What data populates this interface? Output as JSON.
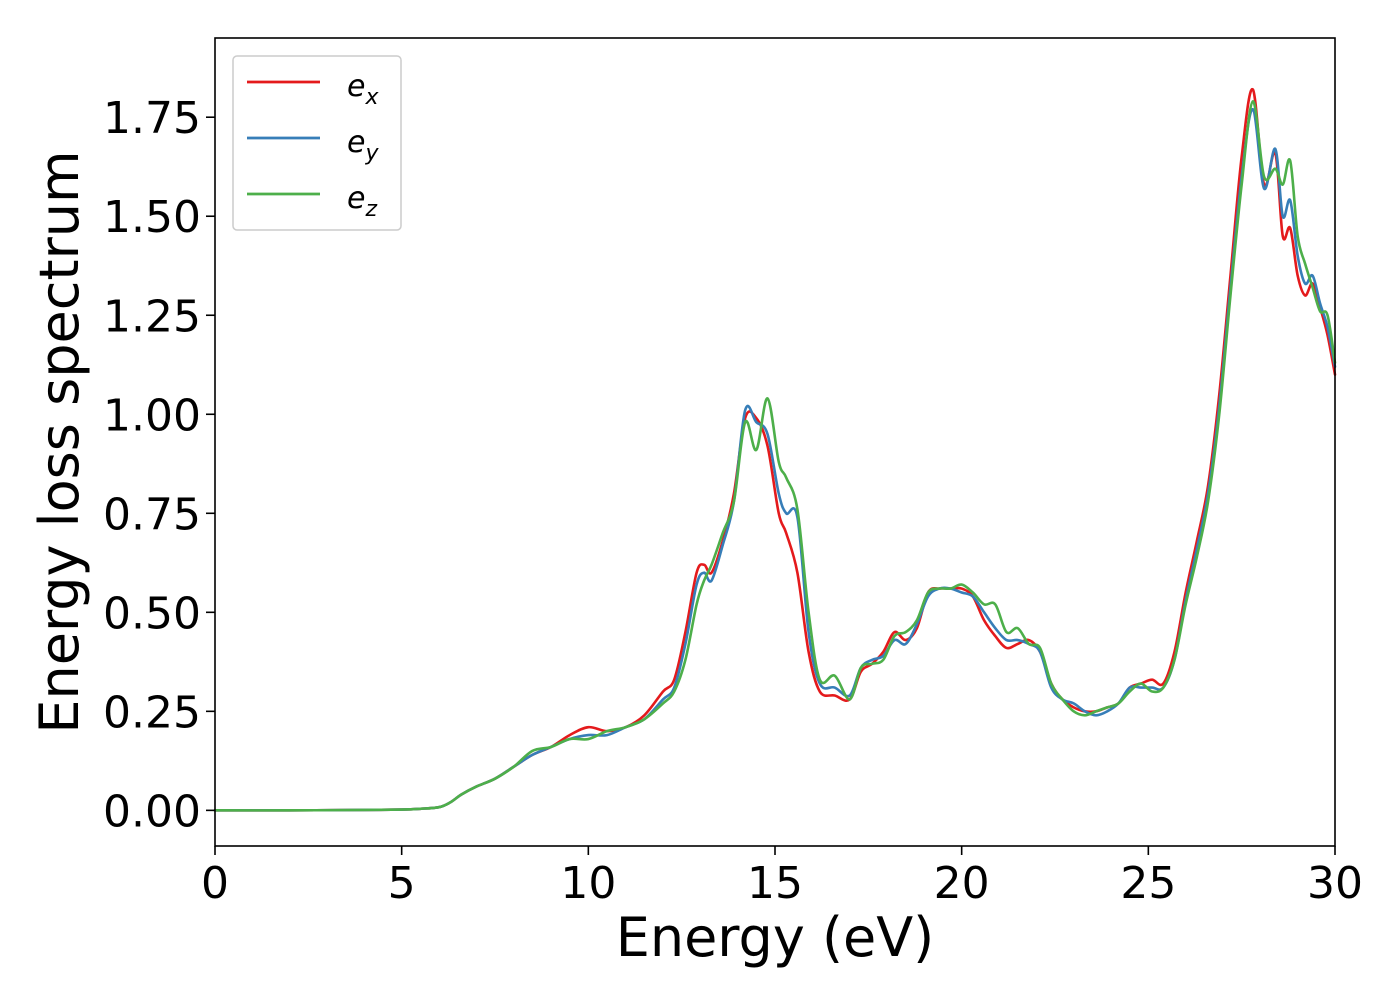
{
  "chart_data": {
    "type": "line",
    "xlabel": "Energy (eV)",
    "ylabel": "Energy loss spectrum",
    "xlim": [
      0,
      30
    ],
    "ylim": [
      -0.09,
      1.95
    ],
    "xticks": [
      "0",
      "5",
      "10",
      "15",
      "20",
      "25",
      "30"
    ],
    "yticks": [
      "0.00",
      "0.25",
      "0.50",
      "0.75",
      "1.00",
      "1.25",
      "1.50",
      "1.75"
    ],
    "grid": false,
    "legend_position": "top-left",
    "series": [
      {
        "name": "e_x",
        "label_base": "e",
        "label_sub": "x",
        "color": "#e41a1c",
        "x": [
          0,
          2,
          4,
          5,
          5.5,
          6,
          6.3,
          6.6,
          7,
          7.5,
          8,
          8.5,
          9,
          9.5,
          10,
          10.5,
          11,
          11.5,
          12,
          12.3,
          12.6,
          12.9,
          13.1,
          13.3,
          13.6,
          13.9,
          14.2,
          14.5,
          14.8,
          15.1,
          15.3,
          15.6,
          15.9,
          16.2,
          16.6,
          17,
          17.3,
          17.6,
          17.9,
          18.2,
          18.5,
          18.8,
          19.1,
          19.4,
          19.7,
          20,
          20.3,
          20.6,
          20.9,
          21.2,
          21.5,
          21.8,
          22.1,
          22.4,
          22.7,
          23,
          23.3,
          23.6,
          23.9,
          24.2,
          24.5,
          24.8,
          25.1,
          25.4,
          25.7,
          26,
          26.3,
          26.6,
          26.9,
          27.2,
          27.5,
          27.8,
          28.1,
          28.4,
          28.6,
          28.8,
          29,
          29.2,
          29.4,
          29.6,
          29.8,
          30
        ],
        "y": [
          0,
          0,
          0.001,
          0.002,
          0.004,
          0.008,
          0.02,
          0.04,
          0.06,
          0.08,
          0.11,
          0.14,
          0.16,
          0.19,
          0.21,
          0.2,
          0.21,
          0.24,
          0.3,
          0.33,
          0.45,
          0.6,
          0.62,
          0.6,
          0.68,
          0.8,
          0.99,
          0.99,
          0.92,
          0.75,
          0.7,
          0.6,
          0.4,
          0.3,
          0.29,
          0.28,
          0.35,
          0.37,
          0.4,
          0.45,
          0.43,
          0.46,
          0.55,
          0.56,
          0.56,
          0.56,
          0.54,
          0.48,
          0.44,
          0.41,
          0.42,
          0.43,
          0.4,
          0.32,
          0.28,
          0.26,
          0.25,
          0.25,
          0.26,
          0.27,
          0.31,
          0.32,
          0.33,
          0.32,
          0.4,
          0.55,
          0.68,
          0.82,
          1.05,
          1.35,
          1.65,
          1.82,
          1.58,
          1.66,
          1.45,
          1.47,
          1.35,
          1.3,
          1.33,
          1.27,
          1.2,
          1.1
        ]
      },
      {
        "name": "e_y",
        "label_base": "e",
        "label_sub": "y",
        "color": "#377eb8",
        "x": [
          0,
          2,
          4,
          5,
          5.5,
          6,
          6.3,
          6.6,
          7,
          7.5,
          8,
          8.5,
          9,
          9.5,
          10,
          10.5,
          11,
          11.5,
          12,
          12.3,
          12.6,
          12.9,
          13.1,
          13.3,
          13.6,
          13.9,
          14.2,
          14.5,
          14.8,
          15.1,
          15.3,
          15.6,
          15.9,
          16.2,
          16.6,
          17,
          17.3,
          17.6,
          17.9,
          18.2,
          18.5,
          18.8,
          19.1,
          19.4,
          19.7,
          20,
          20.3,
          20.6,
          20.9,
          21.2,
          21.5,
          21.8,
          22.1,
          22.4,
          22.7,
          23,
          23.3,
          23.6,
          23.9,
          24.2,
          24.5,
          24.8,
          25.1,
          25.4,
          25.7,
          26,
          26.3,
          26.6,
          26.9,
          27.2,
          27.5,
          27.8,
          28.1,
          28.4,
          28.6,
          28.8,
          29,
          29.2,
          29.4,
          29.6,
          29.8,
          30
        ],
        "y": [
          0,
          0,
          0.001,
          0.002,
          0.004,
          0.008,
          0.02,
          0.04,
          0.06,
          0.08,
          0.11,
          0.14,
          0.16,
          0.18,
          0.19,
          0.19,
          0.21,
          0.23,
          0.28,
          0.31,
          0.42,
          0.57,
          0.6,
          0.58,
          0.67,
          0.78,
          1.01,
          0.98,
          0.95,
          0.8,
          0.75,
          0.74,
          0.45,
          0.32,
          0.31,
          0.29,
          0.36,
          0.38,
          0.39,
          0.43,
          0.42,
          0.47,
          0.54,
          0.56,
          0.56,
          0.55,
          0.54,
          0.5,
          0.46,
          0.43,
          0.43,
          0.42,
          0.4,
          0.31,
          0.28,
          0.27,
          0.25,
          0.24,
          0.25,
          0.27,
          0.31,
          0.31,
          0.31,
          0.31,
          0.38,
          0.53,
          0.66,
          0.8,
          1.02,
          1.32,
          1.6,
          1.77,
          1.57,
          1.67,
          1.5,
          1.54,
          1.4,
          1.33,
          1.35,
          1.28,
          1.22,
          1.12
        ]
      },
      {
        "name": "e_z",
        "label_base": "e",
        "label_sub": "z",
        "color": "#4daf4a",
        "x": [
          0,
          2,
          4,
          5,
          5.5,
          6,
          6.3,
          6.6,
          7,
          7.5,
          8,
          8.5,
          9,
          9.5,
          10,
          10.5,
          11,
          11.5,
          12,
          12.3,
          12.6,
          12.9,
          13.1,
          13.3,
          13.6,
          13.9,
          14.2,
          14.5,
          14.8,
          15.1,
          15.3,
          15.6,
          15.9,
          16.2,
          16.6,
          17,
          17.3,
          17.6,
          17.9,
          18.2,
          18.5,
          18.8,
          19.1,
          19.4,
          19.7,
          20,
          20.3,
          20.6,
          20.9,
          21.2,
          21.5,
          21.8,
          22.1,
          22.4,
          22.7,
          23,
          23.3,
          23.6,
          23.9,
          24.2,
          24.5,
          24.8,
          25.1,
          25.4,
          25.7,
          26,
          26.3,
          26.6,
          26.9,
          27.2,
          27.5,
          27.8,
          28.1,
          28.4,
          28.6,
          28.8,
          29,
          29.2,
          29.4,
          29.6,
          29.8,
          30
        ],
        "y": [
          0,
          0,
          0.001,
          0.002,
          0.004,
          0.008,
          0.02,
          0.04,
          0.06,
          0.08,
          0.11,
          0.15,
          0.16,
          0.18,
          0.18,
          0.2,
          0.21,
          0.23,
          0.27,
          0.3,
          0.38,
          0.52,
          0.58,
          0.62,
          0.7,
          0.78,
          0.98,
          0.91,
          1.04,
          0.88,
          0.84,
          0.76,
          0.5,
          0.33,
          0.34,
          0.28,
          0.36,
          0.37,
          0.38,
          0.44,
          0.45,
          0.48,
          0.55,
          0.56,
          0.56,
          0.57,
          0.55,
          0.52,
          0.52,
          0.45,
          0.46,
          0.42,
          0.41,
          0.32,
          0.28,
          0.25,
          0.24,
          0.25,
          0.26,
          0.27,
          0.3,
          0.32,
          0.3,
          0.31,
          0.38,
          0.52,
          0.64,
          0.78,
          1.0,
          1.3,
          1.58,
          1.79,
          1.6,
          1.62,
          1.58,
          1.64,
          1.45,
          1.38,
          1.32,
          1.26,
          1.25,
          1.13
        ]
      }
    ]
  }
}
